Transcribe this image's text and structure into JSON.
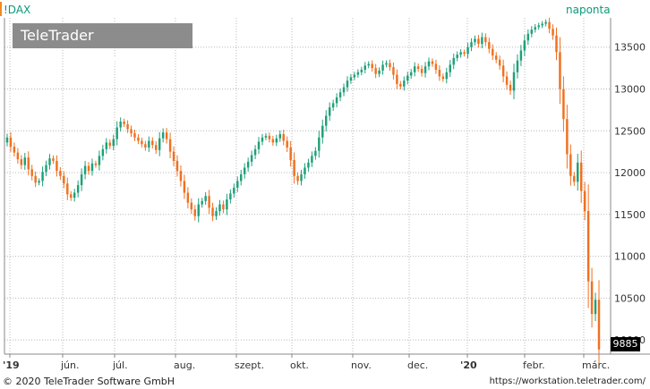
{
  "header": {
    "symbol": "!DAX",
    "period": "naponta",
    "brand_regular": "TeleTrader ",
    "brand_bold": "WorkStation"
  },
  "footer": {
    "copyright": "© 2020 TeleTrader Software GmbH",
    "url": "https://workstation.teletrader.com/"
  },
  "colors": {
    "up": "#1fa07a",
    "down": "#f07020",
    "grid": "#b8b8b8",
    "last_box": "#000000"
  },
  "chart_data": {
    "type": "candlestick",
    "y_axis_side": "right",
    "ylim": [
      9830,
      13850
    ],
    "y_ticks": [
      10000,
      10500,
      11000,
      11500,
      12000,
      12500,
      13000,
      13500
    ],
    "x_tick_labels": [
      {
        "label": "'19",
        "bold": true
      },
      {
        "label": "jún.",
        "bold": false
      },
      {
        "label": "júl.",
        "bold": false
      },
      {
        "label": "aug.",
        "bold": false
      },
      {
        "label": "szept.",
        "bold": false
      },
      {
        "label": "okt.",
        "bold": false
      },
      {
        "label": "nov.",
        "bold": false
      },
      {
        "label": "dec.",
        "bold": false
      },
      {
        "label": "'20",
        "bold": true
      },
      {
        "label": "febr.",
        "bold": false
      },
      {
        "label": "márc.",
        "bold": false
      }
    ],
    "last_value": "9885",
    "close_series": [
      12420,
      12310,
      12240,
      12160,
      12090,
      12180,
      12040,
      11960,
      11880,
      11900,
      12010,
      12090,
      12170,
      12140,
      12020,
      11960,
      11870,
      11740,
      11700,
      11760,
      11850,
      11980,
      12080,
      12020,
      12110,
      12090,
      12200,
      12280,
      12360,
      12320,
      12400,
      12540,
      12610,
      12580,
      12520,
      12470,
      12420,
      12380,
      12340,
      12300,
      12380,
      12330,
      12270,
      12410,
      12480,
      12400,
      12250,
      12140,
      12020,
      11900,
      11760,
      11640,
      11560,
      11480,
      11620,
      11660,
      11720,
      11580,
      11480,
      11540,
      11620,
      11560,
      11680,
      11750,
      11820,
      11900,
      11980,
      12060,
      12130,
      12210,
      12280,
      12370,
      12420,
      12440,
      12400,
      12360,
      12410,
      12460,
      12380,
      12300,
      12150,
      11960,
      11900,
      11980,
      12060,
      12120,
      12200,
      12260,
      12420,
      12560,
      12680,
      12780,
      12830,
      12900,
      12960,
      13020,
      13100,
      13140,
      13170,
      13200,
      13230,
      13280,
      13300,
      13250,
      13180,
      13220,
      13290,
      13310,
      13260,
      13170,
      13060,
      13030,
      13100,
      13160,
      13200,
      13270,
      13240,
      13190,
      13270,
      13330,
      13300,
      13230,
      13150,
      13120,
      13200,
      13290,
      13370,
      13410,
      13440,
      13420,
      13500,
      13560,
      13600,
      13540,
      13620,
      13560,
      13480,
      13400,
      13350,
      13280,
      13150,
      13050,
      12980,
      13200,
      13340,
      13460,
      13580,
      13660,
      13710,
      13740,
      13760,
      13780,
      13800,
      13720,
      13640,
      13440,
      13000,
      12640,
      12220,
      11960,
      11890,
      12120,
      11780,
      11540,
      10700,
      10310,
      10480,
      9885
    ]
  }
}
